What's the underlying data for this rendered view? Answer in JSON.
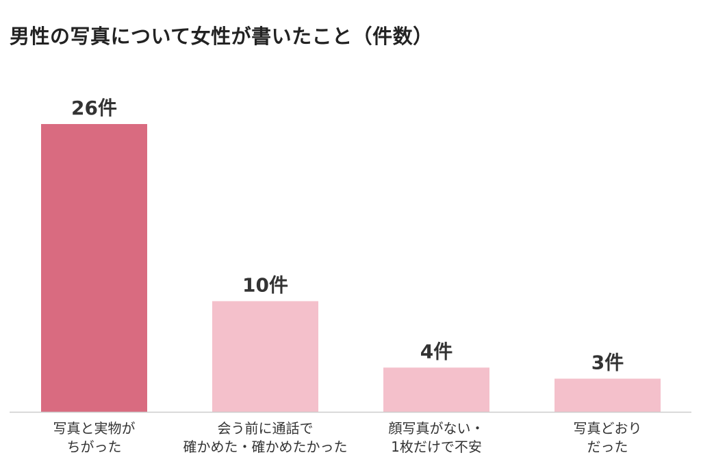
{
  "chart_data": {
    "type": "bar",
    "title": "男性の写真について女性が書いたこと（件数）",
    "categories": [
      [
        "写真と実物が",
        "ちがった"
      ],
      [
        "会う前に通話で",
        "確かめた・確かめたかった"
      ],
      [
        "顔写真がない・",
        "1枚だけで不安"
      ],
      [
        "写真どおり",
        "だった"
      ]
    ],
    "values": [
      26,
      10,
      4,
      3
    ],
    "value_labels": [
      "26件",
      "10件",
      "4件",
      "3件"
    ],
    "ylim": [
      0,
      26
    ],
    "grid": false,
    "legend": "none",
    "colors": {
      "highlight": "#d96b80",
      "default": "#f4c0cb",
      "axis": "#cccccc"
    },
    "highlight_index": 0
  }
}
